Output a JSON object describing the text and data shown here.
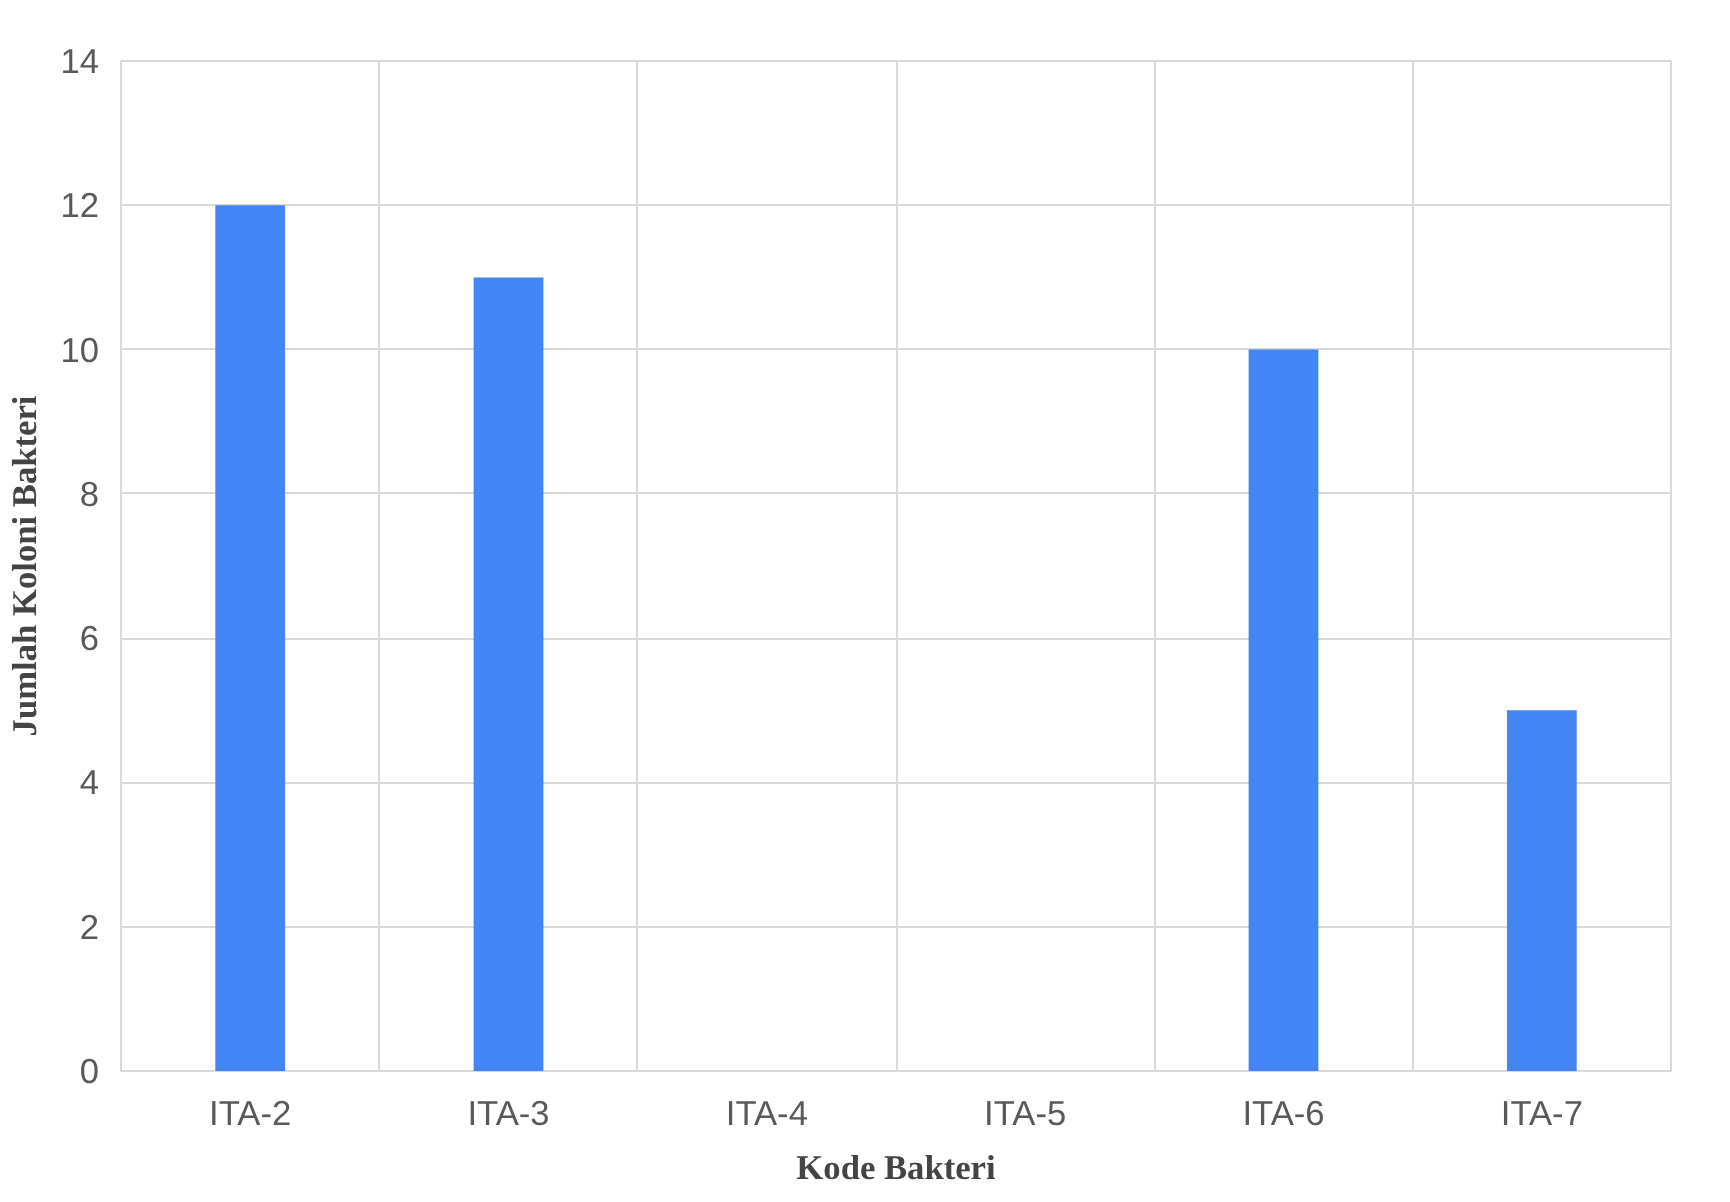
{
  "chart_data": {
    "type": "bar",
    "xlabel": "Kode Bakteri",
    "ylabel": "Jumlah Koloni Bakteri",
    "categories": [
      "ITA-2",
      "ITA-3",
      "ITA-4",
      "ITA-5",
      "ITA-6",
      "ITA-7"
    ],
    "values": [
      12,
      11,
      0,
      0,
      10,
      5
    ],
    "color": "#4285f4",
    "ylim": [
      0,
      14
    ],
    "yticks": [
      0,
      2,
      4,
      6,
      8,
      10,
      12,
      14
    ],
    "grid": true
  }
}
